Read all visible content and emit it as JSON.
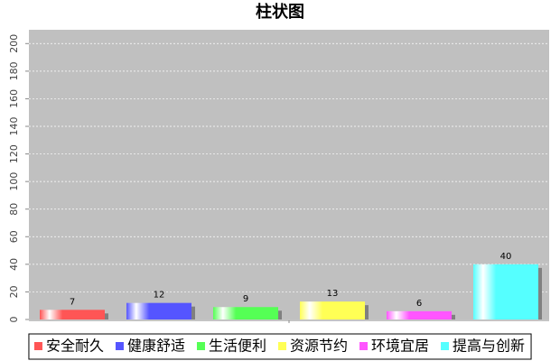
{
  "chart_data": {
    "type": "bar",
    "title": "柱状图",
    "categories": [
      null
    ],
    "series": [
      {
        "name": "安全耐久",
        "color": "#ff5555",
        "values": [
          7
        ]
      },
      {
        "name": "健康舒适",
        "color": "#5555ff",
        "values": [
          12
        ]
      },
      {
        "name": "生活便利",
        "color": "#55ff55",
        "values": [
          9
        ]
      },
      {
        "name": "资源节约",
        "color": "#ffff55",
        "values": [
          13
        ]
      },
      {
        "name": "环境宜居",
        "color": "#ff55ff",
        "values": [
          6
        ]
      },
      {
        "name": "提高与创新",
        "color": "#55ffff",
        "values": [
          40
        ]
      }
    ],
    "ylim": [
      0,
      210
    ],
    "yticks": [
      0,
      20,
      40,
      60,
      80,
      100,
      120,
      140,
      160,
      180,
      200
    ],
    "grid": true,
    "legend": "bottom"
  }
}
